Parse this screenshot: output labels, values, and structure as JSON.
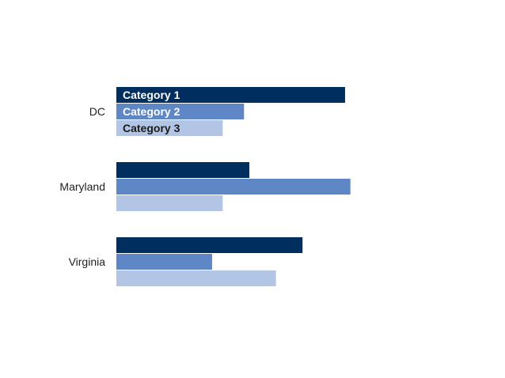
{
  "chart_data": {
    "type": "bar",
    "orientation": "horizontal",
    "categories": [
      "DC",
      "Maryland",
      "Virginia"
    ],
    "series": [
      {
        "name": "Category 1",
        "values": [
          86,
          50,
          70
        ],
        "color": "#002f5f"
      },
      {
        "name": "Category 2",
        "values": [
          48,
          88,
          36
        ],
        "color": "#5f87c6"
      },
      {
        "name": "Category 3",
        "values": [
          40,
          40,
          60
        ],
        "color": "#b2c5e5"
      }
    ],
    "series_label_colors": [
      "#ffffff",
      "#ffffff",
      "#1a1a1a"
    ],
    "xlim": [
      0,
      100
    ],
    "grid": false,
    "axes_visible": false,
    "legend": "inline-on-first-category"
  }
}
